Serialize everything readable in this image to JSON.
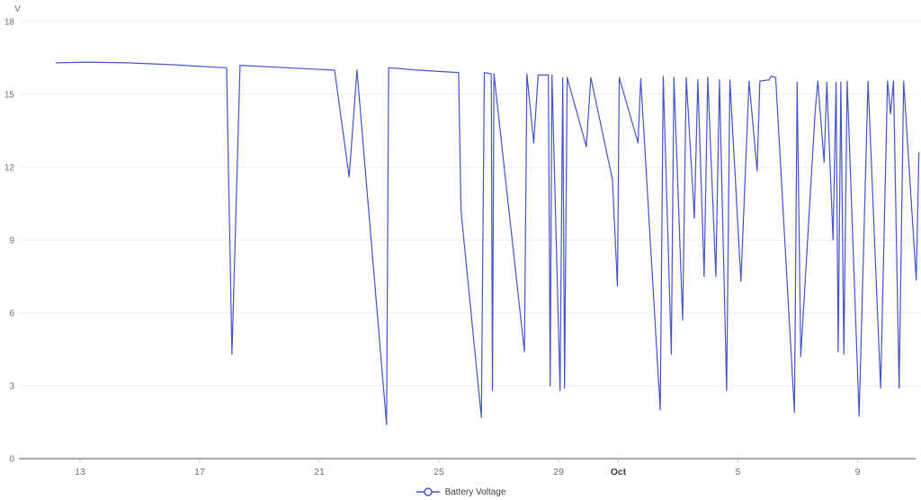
{
  "chart_data": {
    "type": "line",
    "title": "",
    "xlabel": "",
    "ylabel": "V",
    "ylim": [
      0,
      18
    ],
    "yticks": [
      0,
      3,
      6,
      9,
      12,
      15,
      18
    ],
    "xlim": [
      10.955,
      41.06
    ],
    "xticks": [
      {
        "pos": 13,
        "label": "13",
        "bold": false
      },
      {
        "pos": 17,
        "label": "17",
        "bold": false
      },
      {
        "pos": 21,
        "label": "21",
        "bold": false
      },
      {
        "pos": 25,
        "label": "25",
        "bold": false
      },
      {
        "pos": 29,
        "label": "29",
        "bold": false
      },
      {
        "pos": 31,
        "label": "Oct",
        "bold": true
      },
      {
        "pos": 35,
        "label": "5",
        "bold": false
      },
      {
        "pos": 39,
        "label": "9",
        "bold": false
      }
    ],
    "grid": true,
    "legend_position": "bottom-center",
    "series": [
      {
        "name": "Battery Voltage",
        "color": "#4353c8",
        "marker": "hollow-circle",
        "points": [
          [
            12.2,
            16.3
          ],
          [
            13.2,
            16.33
          ],
          [
            14.6,
            16.3
          ],
          [
            16.2,
            16.22
          ],
          [
            17.54,
            16.12
          ],
          [
            17.9,
            16.1
          ],
          [
            18.08,
            4.3
          ],
          [
            18.35,
            16.2
          ],
          [
            19.6,
            16.12
          ],
          [
            21.0,
            16.03
          ],
          [
            21.51,
            16.0
          ],
          [
            22.0,
            11.6
          ],
          [
            22.26,
            16.0
          ],
          [
            23.25,
            1.4
          ],
          [
            23.32,
            16.1
          ],
          [
            24.3,
            16.0
          ],
          [
            25.66,
            15.9
          ],
          [
            25.74,
            10.2
          ],
          [
            26.42,
            1.7
          ],
          [
            26.52,
            15.9
          ],
          [
            26.75,
            15.85
          ],
          [
            26.79,
            2.8
          ],
          [
            26.84,
            15.85
          ],
          [
            27.86,
            4.4
          ],
          [
            27.94,
            15.85
          ],
          [
            28.17,
            13.0
          ],
          [
            28.32,
            15.8
          ],
          [
            28.66,
            15.8
          ],
          [
            28.72,
            3.0
          ],
          [
            28.78,
            15.8
          ],
          [
            29.05,
            2.8
          ],
          [
            29.14,
            15.7
          ],
          [
            29.2,
            2.9
          ],
          [
            29.29,
            15.7
          ],
          [
            29.93,
            12.85
          ],
          [
            30.08,
            15.7
          ],
          [
            30.8,
            11.5
          ],
          [
            30.97,
            7.1
          ],
          [
            31.03,
            15.7
          ],
          [
            31.66,
            13.0
          ],
          [
            31.75,
            15.65
          ],
          [
            32.4,
            2.0
          ],
          [
            32.5,
            15.75
          ],
          [
            32.77,
            4.3
          ],
          [
            32.86,
            15.7
          ],
          [
            33.15,
            5.7
          ],
          [
            33.27,
            15.7
          ],
          [
            33.54,
            9.9
          ],
          [
            33.66,
            15.6
          ],
          [
            33.87,
            7.5
          ],
          [
            33.99,
            15.7
          ],
          [
            34.26,
            7.5
          ],
          [
            34.38,
            15.6
          ],
          [
            34.62,
            2.8
          ],
          [
            34.73,
            15.6
          ],
          [
            35.1,
            7.3
          ],
          [
            35.37,
            15.55
          ],
          [
            35.64,
            11.85
          ],
          [
            35.73,
            15.55
          ],
          [
            36.05,
            15.6
          ],
          [
            36.1,
            15.75
          ],
          [
            36.26,
            15.7
          ],
          [
            36.89,
            1.9
          ],
          [
            36.98,
            15.5
          ],
          [
            37.1,
            4.2
          ],
          [
            37.58,
            14.3
          ],
          [
            37.67,
            15.55
          ],
          [
            37.88,
            12.2
          ],
          [
            37.97,
            15.5
          ],
          [
            38.18,
            9.0
          ],
          [
            38.28,
            15.5
          ],
          [
            38.35,
            4.4
          ],
          [
            38.44,
            15.5
          ],
          [
            38.54,
            4.3
          ],
          [
            38.65,
            15.55
          ],
          [
            39.05,
            1.75
          ],
          [
            39.35,
            15.55
          ],
          [
            39.77,
            2.9
          ],
          [
            40.0,
            15.55
          ],
          [
            40.1,
            14.2
          ],
          [
            40.2,
            15.55
          ],
          [
            40.39,
            2.9
          ],
          [
            40.54,
            15.55
          ],
          [
            40.96,
            7.35
          ],
          [
            41.05,
            12.6
          ]
        ]
      }
    ]
  },
  "colors": {
    "grid": "#e8e9f3",
    "axis": "#ababab",
    "tick": "#bdbdbd",
    "tick_text": "#707070",
    "month_text": "#3c3c3c",
    "legend_text": "#404040",
    "background": "#ffffff"
  }
}
